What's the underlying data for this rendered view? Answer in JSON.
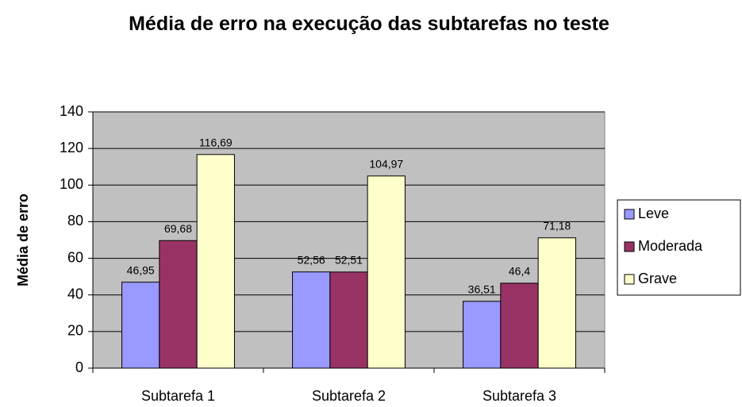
{
  "chart_data": {
    "type": "bar",
    "title": "Média de erro na execução das subtarefas no teste",
    "y_label": "Média de erro",
    "categories": [
      "Subtarefa 1",
      "Subtarefa 2",
      "Subtarefa 3"
    ],
    "series": [
      {
        "name": "Leve",
        "color": "#9999ff",
        "values": [
          46.95,
          52.56,
          36.51
        ],
        "value_labels": [
          "46,95",
          "52,56",
          "36,51"
        ]
      },
      {
        "name": "Moderada",
        "color": "#993366",
        "values": [
          69.68,
          52.51,
          46.4
        ],
        "value_labels": [
          "69,68",
          "52,51",
          "46,4"
        ]
      },
      {
        "name": "Grave",
        "color": "#ffffcc",
        "values": [
          116.69,
          104.97,
          71.18
        ],
        "value_labels": [
          "116,69",
          "104,97",
          "71,18"
        ]
      }
    ],
    "ylim": [
      0,
      140
    ],
    "yticks": [
      0,
      20,
      40,
      60,
      80,
      100,
      120,
      140
    ],
    "grid": true,
    "legend": "right",
    "plot_background": "#c0c0c0"
  }
}
